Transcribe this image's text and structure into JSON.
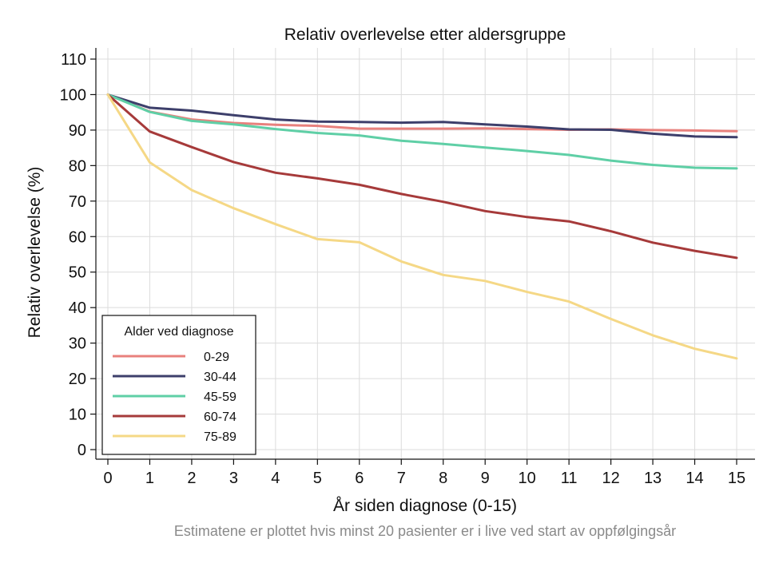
{
  "chart_data": {
    "type": "line",
    "title": "Relativ overlevelse etter aldersgruppe",
    "xlabel": "År siden diagnose (0-15)",
    "ylabel": "Relativ overlevelse (%)",
    "note": "Estimatene er plottet hvis minst 20 pasienter er i live ved start av oppfølgingsår",
    "xlim": [
      0,
      15
    ],
    "ylim": [
      0,
      110
    ],
    "x_ticks": [
      0,
      1,
      2,
      3,
      4,
      5,
      6,
      7,
      8,
      9,
      10,
      11,
      12,
      13,
      14,
      15
    ],
    "y_ticks": [
      0,
      10,
      20,
      30,
      40,
      50,
      60,
      70,
      80,
      90,
      100,
      110
    ],
    "grid": true,
    "legend": {
      "title": "Alder ved diagnose",
      "position": "bottom-left"
    },
    "x": [
      0,
      1,
      2,
      3,
      4,
      5,
      6,
      7,
      8,
      9,
      10,
      11,
      12,
      13,
      14,
      15
    ],
    "series": [
      {
        "name": "0-29",
        "color": "#e8817d",
        "values": [
          100,
          95.2,
          93.0,
          92.0,
          91.5,
          91.2,
          90.4,
          90.4,
          90.4,
          90.5,
          90.3,
          90.1,
          90.2,
          90.0,
          89.9,
          89.7
        ]
      },
      {
        "name": "30-44",
        "color": "#3d3f6b",
        "values": [
          100,
          96.3,
          95.5,
          94.2,
          93.0,
          92.4,
          92.3,
          92.1,
          92.3,
          91.6,
          91.0,
          90.2,
          90.1,
          89.0,
          88.2,
          88.0
        ]
      },
      {
        "name": "45-59",
        "color": "#5fcfa6",
        "values": [
          100,
          95.1,
          92.6,
          91.6,
          90.3,
          89.2,
          88.5,
          87.0,
          86.1,
          85.1,
          84.1,
          83.0,
          81.4,
          80.2,
          79.4,
          79.2
        ]
      },
      {
        "name": "60-74",
        "color": "#a63a3a",
        "values": [
          100,
          89.6,
          85.2,
          81.0,
          78.0,
          76.4,
          74.6,
          72.0,
          69.8,
          67.2,
          65.5,
          64.3,
          61.5,
          58.3,
          56.0,
          54.0
        ]
      },
      {
        "name": "75-89",
        "color": "#f5d886",
        "values": [
          100,
          80.9,
          73.1,
          68.0,
          63.5,
          59.3,
          58.4,
          53.0,
          49.2,
          47.5,
          44.4,
          41.7,
          36.8,
          32.2,
          28.4,
          25.7
        ]
      }
    ]
  }
}
